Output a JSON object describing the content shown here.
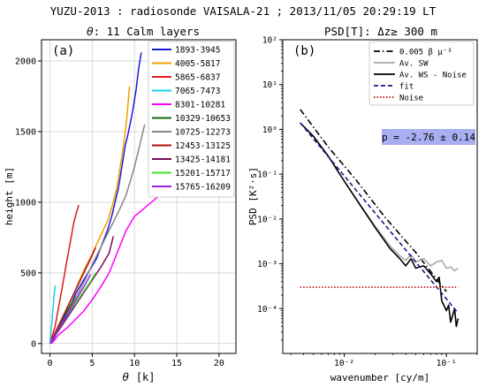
{
  "figure_title": "YUZU-2013 : radiosonde VAISALA-21 ; 2013/11/05  20:29:19 LT",
  "chart_data": [
    {
      "type": "line",
      "title_symbol": "θ",
      "title_rest": ": 11 Calm layers",
      "panel_label": "(a)",
      "xlabel_symbol": "θ",
      "xlabel_unit": "[k]",
      "ylabel": "height  [m]",
      "xlim": [
        -1,
        22
      ],
      "ylim": [
        -70,
        2150
      ],
      "xticks": [
        0,
        5,
        10,
        15,
        20
      ],
      "yticks": [
        0,
        500,
        1000,
        1500,
        2000
      ],
      "grid": true,
      "legend_position": "top-right",
      "series": [
        {
          "name": "1893-3945",
          "color": "#1a1adb",
          "x": [
            0.2,
            1.0,
            1.8,
            2.6,
            3.0,
            4.0,
            4.7,
            5.5,
            6.0,
            6.8,
            7.3,
            7.7,
            8.1,
            8.5,
            8.9,
            9.3,
            9.8,
            10.2,
            10.5,
            10.8
          ],
          "y": [
            0,
            100,
            200,
            290,
            350,
            450,
            520,
            600,
            680,
            800,
            900,
            1000,
            1100,
            1250,
            1400,
            1500,
            1650,
            1800,
            1950,
            2060
          ]
        },
        {
          "name": "4005-5817",
          "color": "#f0a000",
          "x": [
            0.1,
            0.9,
            1.7,
            2.5,
            3.3,
            4.1,
            4.8,
            5.5,
            6.2,
            6.9,
            7.4,
            7.9,
            8.3,
            8.7,
            9.1,
            9.4
          ],
          "y": [
            0,
            110,
            210,
            310,
            420,
            530,
            610,
            700,
            790,
            880,
            980,
            1100,
            1250,
            1400,
            1600,
            1820
          ]
        },
        {
          "name": "5865-6837",
          "color": "#e01818",
          "x": [
            0.0,
            0.6,
            1.0,
            1.4,
            1.8,
            2.2,
            2.5,
            2.8,
            3.1,
            3.4
          ],
          "y": [
            0,
            120,
            250,
            380,
            520,
            650,
            750,
            850,
            920,
            980
          ]
        },
        {
          "name": "7065-7473",
          "color": "#18d0e6",
          "x": [
            0.0,
            0.2,
            0.4,
            0.6
          ],
          "y": [
            0,
            140,
            280,
            410
          ]
        },
        {
          "name": "8301-10281",
          "color": "#ff00ff",
          "x": [
            0.2,
            1.0,
            2.0,
            3.0,
            4.0,
            5.0,
            6.0,
            7.0,
            8.0,
            9.0,
            10.0,
            11.0,
            12.0,
            13.0,
            14.0,
            15.0
          ],
          "y": [
            0,
            60,
            110,
            170,
            230,
            310,
            400,
            500,
            650,
            800,
            900,
            950,
            1000,
            1050,
            1110,
            1180
          ]
        },
        {
          "name": "10329-10653",
          "color": "#0e6e0e",
          "x": [
            0.0,
            0.6,
            1.2,
            1.8,
            2.4,
            3.0
          ],
          "y": [
            0,
            70,
            140,
            210,
            270,
            330
          ]
        },
        {
          "name": "10725-12273",
          "color": "#888888",
          "x": [
            0.0,
            1.0,
            2.0,
            3.0,
            4.0,
            5.0,
            6.0,
            7.0,
            8.0,
            9.0,
            10.0,
            10.8,
            11.2
          ],
          "y": [
            0,
            100,
            200,
            320,
            430,
            560,
            680,
            800,
            920,
            1050,
            1250,
            1450,
            1550
          ]
        },
        {
          "name": "12453-13125",
          "color": "#b01010",
          "x": [
            0.0,
            0.8,
            1.6,
            2.4,
            3.2,
            4.0,
            4.8,
            5.4
          ],
          "y": [
            0,
            100,
            200,
            300,
            400,
            500,
            600,
            680
          ]
        },
        {
          "name": "13425-14181",
          "color": "#7a0a5a",
          "x": [
            0.0,
            1.0,
            2.0,
            3.0,
            4.0,
            5.0,
            6.0,
            7.0,
            7.5
          ],
          "y": [
            0,
            90,
            180,
            270,
            360,
            450,
            540,
            640,
            760
          ]
        },
        {
          "name": "15201-15717",
          "color": "#44e030",
          "x": [
            0.0,
            0.8,
            1.6,
            2.4,
            3.2,
            4.0,
            4.8,
            5.4
          ],
          "y": [
            0,
            80,
            160,
            230,
            300,
            370,
            440,
            500
          ]
        },
        {
          "name": "15765-16209",
          "color": "#9a24e6",
          "x": [
            0.0,
            0.7,
            1.4,
            2.1,
            2.8,
            3.5,
            4.2,
            4.8
          ],
          "y": [
            0,
            70,
            140,
            210,
            280,
            350,
            420,
            490
          ]
        }
      ]
    },
    {
      "type": "line",
      "title": "PSD[T]: Δz≥  300 m",
      "panel_label": "(b)",
      "xlabel": "wavenumber  [cy/m]",
      "ylabel": "PSD  [K²·s]",
      "x_scale": "log",
      "y_scale": "log",
      "xlim": [
        0.0025,
        0.2
      ],
      "ylim": [
        1e-05,
        100
      ],
      "xtick_labels": [
        "10⁻²",
        "10⁻¹"
      ],
      "ytick_labels": [
        "10⁻⁴",
        "10⁻³",
        "10⁻²",
        "10⁻¹",
        "10⁰",
        "10¹",
        "10²"
      ],
      "grid": false,
      "legend_position": "top-right",
      "annotation": "p = -2.76 ± 0.14",
      "annotation_color": "#a8aef0",
      "series": [
        {
          "name": "0.005 β μ⁻³",
          "color": "#000000",
          "style": "dashdot",
          "x": [
            0.0037,
            0.007,
            0.013,
            0.025,
            0.05,
            0.1
          ],
          "y": [
            2.8,
            0.4,
            0.075,
            0.011,
            0.0018,
            0.00024
          ]
        },
        {
          "name": "Av. SW",
          "color": "#aaaaaa",
          "style": "solid",
          "x": [
            0.0037,
            0.005,
            0.007,
            0.01,
            0.014,
            0.02,
            0.028,
            0.035,
            0.04,
            0.045,
            0.05,
            0.06,
            0.07,
            0.08,
            0.09,
            0.1,
            0.11,
            0.12,
            0.13
          ],
          "y": [
            1.4,
            0.7,
            0.25,
            0.07,
            0.022,
            0.007,
            0.0025,
            0.0015,
            0.0012,
            0.0016,
            0.0011,
            0.0013,
            0.0009,
            0.0011,
            0.0012,
            0.0008,
            0.00085,
            0.0007,
            0.0008
          ]
        },
        {
          "name": "Av. WS - Noise",
          "color": "#000000",
          "style": "solid",
          "x": [
            0.0037,
            0.005,
            0.007,
            0.01,
            0.014,
            0.02,
            0.028,
            0.035,
            0.04,
            0.045,
            0.05,
            0.06,
            0.07,
            0.08,
            0.085,
            0.09,
            0.1,
            0.105,
            0.11,
            0.115,
            0.12,
            0.125,
            0.13
          ],
          "y": [
            1.4,
            0.7,
            0.25,
            0.07,
            0.022,
            0.0065,
            0.0022,
            0.0013,
            0.0009,
            0.0013,
            0.0008,
            0.0009,
            0.0006,
            0.0004,
            0.0005,
            0.00015,
            9e-05,
            0.00012,
            5e-05,
            7e-05,
            0.0001,
            4e-05,
            6e-05
          ]
        },
        {
          "name": "fit",
          "color": "#1a1a8a",
          "style": "dashed",
          "x": [
            0.0037,
            0.13
          ],
          "y": [
            1.4,
            8e-05
          ]
        },
        {
          "name": "Noise",
          "color": "#b01010",
          "style": "dotted",
          "x": [
            0.0037,
            0.13
          ],
          "y": [
            0.0003,
            0.0003
          ]
        }
      ]
    }
  ]
}
